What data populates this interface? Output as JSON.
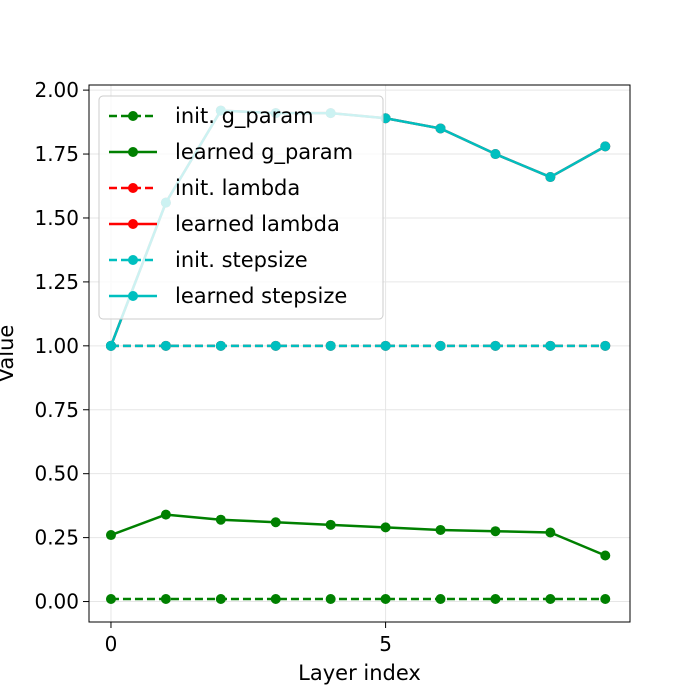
{
  "chart_data": {
    "type": "line",
    "title": "",
    "xlabel": "Layer index",
    "ylabel": "Value",
    "xlim": [
      -0.4,
      9.45
    ],
    "ylim": [
      -0.08,
      2.02
    ],
    "xticks": [
      0,
      5
    ],
    "xtick_labels": [
      "0",
      "5"
    ],
    "yticks": [
      0.0,
      0.25,
      0.5,
      0.75,
      1.0,
      1.25,
      1.5,
      1.75,
      2.0
    ],
    "ytick_labels": [
      "0.00",
      "0.25",
      "0.50",
      "0.75",
      "1.00",
      "1.25",
      "1.50",
      "1.75",
      "2.00"
    ],
    "grid": true,
    "legend_position": "top-left",
    "x": [
      0,
      1,
      2,
      3,
      4,
      5,
      6,
      7,
      8,
      9
    ],
    "series": [
      {
        "name": "init. g_param",
        "color": "#008000",
        "style": "dashed",
        "values": [
          0.01,
          0.01,
          0.01,
          0.01,
          0.01,
          0.01,
          0.01,
          0.01,
          0.01,
          0.01
        ]
      },
      {
        "name": "learned g_param",
        "color": "#008000",
        "style": "solid",
        "values": [
          0.26,
          0.34,
          0.32,
          0.31,
          0.3,
          0.29,
          0.28,
          0.275,
          0.27,
          0.18
        ]
      },
      {
        "name": "init. lambda",
        "color": "#ff0000",
        "style": "dashed",
        "values": [
          1.0,
          1.0,
          1.0,
          1.0,
          1.0,
          1.0,
          1.0,
          1.0,
          1.0,
          1.0
        ]
      },
      {
        "name": "learned lambda",
        "color": "#ff0000",
        "style": "solid",
        "values": [
          1.0,
          1.56,
          1.92,
          1.91,
          1.91,
          1.89,
          1.85,
          1.75,
          1.66,
          1.78
        ]
      },
      {
        "name": "init. stepsize",
        "color": "#00bfbf",
        "style": "dashed",
        "values": [
          1.0,
          1.0,
          1.0,
          1.0,
          1.0,
          1.0,
          1.0,
          1.0,
          1.0,
          1.0
        ]
      },
      {
        "name": "learned stepsize",
        "color": "#00bfbf",
        "style": "solid",
        "values": [
          1.0,
          1.56,
          1.92,
          1.91,
          1.91,
          1.89,
          1.85,
          1.75,
          1.66,
          1.78
        ]
      }
    ]
  }
}
